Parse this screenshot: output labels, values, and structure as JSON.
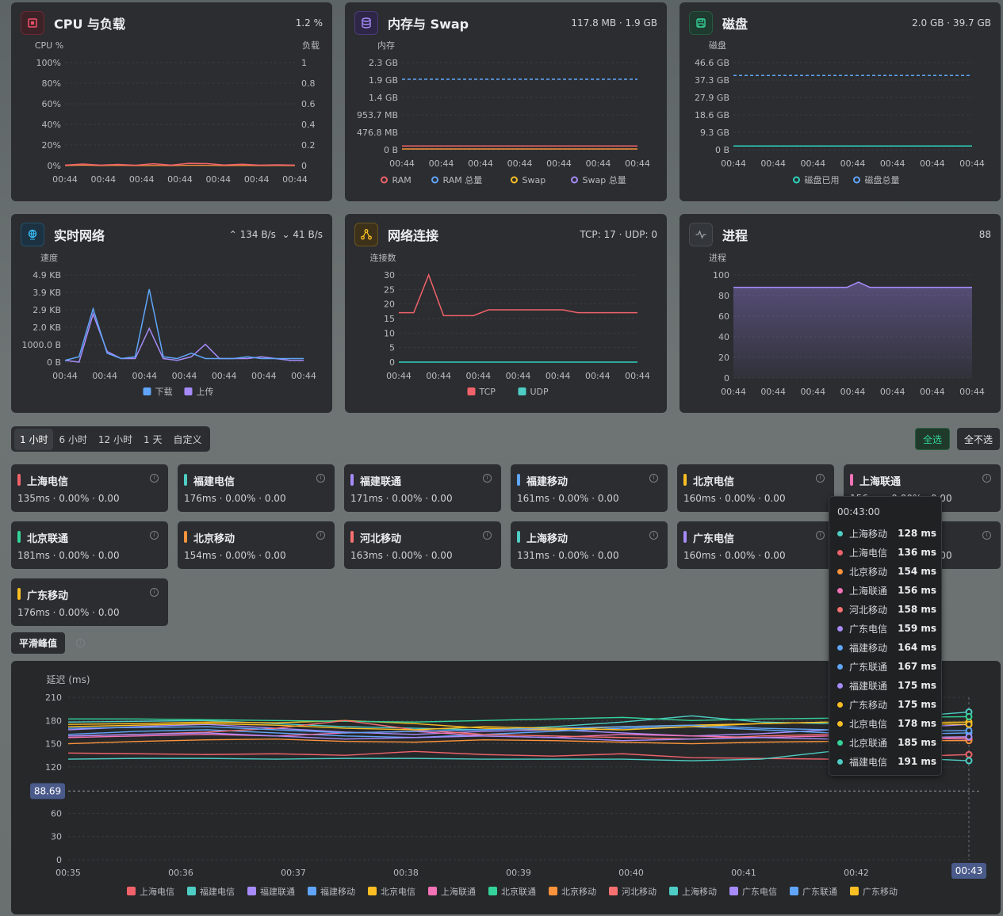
{
  "cards": {
    "cpu": {
      "title": "CPU 与负载",
      "value": "1.2 %",
      "ylabel": "CPU %",
      "y2label": "负载",
      "yticks": [
        "100%",
        "80%",
        "60%",
        "40%",
        "20%",
        "0%"
      ],
      "y2ticks": [
        "1",
        "0.8",
        "0.6",
        "0.4",
        "0.2",
        "0"
      ],
      "xticks": [
        "00:44",
        "00:44",
        "00:44",
        "00:44",
        "00:44",
        "00:44",
        "00:44"
      ]
    },
    "mem": {
      "title": "内存与 Swap",
      "value": "117.8 MB · 1.9 GB",
      "ylabel": "内存",
      "yticks": [
        "2.3 GB",
        "1.9 GB",
        "1.4 GB",
        "953.7 MB",
        "476.8 MB",
        "0 B"
      ],
      "xticks": [
        "00:44",
        "00:44",
        "00:44",
        "00:44",
        "00:44",
        "00:44",
        "00:44"
      ],
      "legend": [
        "RAM",
        "RAM 总量",
        "Swap",
        "Swap 总量"
      ]
    },
    "disk": {
      "title": "磁盘",
      "value": "2.0 GB · 39.7 GB",
      "ylabel": "磁盘",
      "yticks": [
        "46.6 GB",
        "37.3 GB",
        "27.9 GB",
        "18.6 GB",
        "9.3 GB",
        "0 B"
      ],
      "xticks": [
        "00:44",
        "00:44",
        "00:44",
        "00:44",
        "00:44",
        "00:44",
        "00:44"
      ],
      "legend": [
        "磁盘已用",
        "磁盘总量"
      ]
    },
    "net": {
      "title": "实时网络",
      "up": "134 B/s",
      "down": "41 B/s",
      "ylabel": "速度",
      "yticks": [
        "4.9 KB",
        "3.9 KB",
        "2.9 KB",
        "2.0 KB",
        "1000.0 B",
        "0 B"
      ],
      "xticks": [
        "00:44",
        "00:44",
        "00:44",
        "00:44",
        "00:44",
        "00:44",
        "00:44"
      ],
      "legend": [
        "下载",
        "上传"
      ]
    },
    "conn": {
      "title": "网络连接",
      "value": "TCP: 17 · UDP: 0",
      "ylabel": "连接数",
      "yticks": [
        "30",
        "25",
        "20",
        "15",
        "10",
        "5",
        "0"
      ],
      "xticks": [
        "00:44",
        "00:44",
        "00:44",
        "00:44",
        "00:44",
        "00:44",
        "00:44"
      ],
      "legend": [
        "TCP",
        "UDP"
      ]
    },
    "proc": {
      "title": "进程",
      "value": "88",
      "ylabel": "进程",
      "yticks": [
        "100",
        "80",
        "60",
        "40",
        "20",
        "0"
      ],
      "xticks": [
        "00:44",
        "00:44",
        "00:44",
        "00:44",
        "00:44",
        "00:44",
        "00:44"
      ]
    }
  },
  "range_tabs": [
    "1 小时",
    "6 小时",
    "12 小时",
    "1 天",
    "自定义"
  ],
  "select_all": "全选",
  "select_none": "全不选",
  "nodes": [
    {
      "name": "上海电信",
      "stat": "135ms · 0.00% · 0.00",
      "color": "#f0626a"
    },
    {
      "name": "福建电信",
      "stat": "176ms · 0.00% · 0.00",
      "color": "#4ecdc4"
    },
    {
      "name": "福建联通",
      "stat": "171ms · 0.00% · 0.00",
      "color": "#a78bfa"
    },
    {
      "name": "福建移动",
      "stat": "161ms · 0.00% · 0.00",
      "color": "#60a5fa"
    },
    {
      "name": "北京电信",
      "stat": "160ms · 0.00% · 0.00",
      "color": "#fbbf24"
    },
    {
      "name": "上海联通",
      "stat": "156ms · 0.00% · 0.00",
      "color": "#f472b6"
    },
    {
      "name": "北京联通",
      "stat": "181ms · 0.00% · 0.00",
      "color": "#34d399"
    },
    {
      "name": "北京移动",
      "stat": "154ms · 0.00% · 0.00",
      "color": "#fb923c"
    },
    {
      "name": "河北移动",
      "stat": "163ms · 0.00% · 0.00",
      "color": "#f87171"
    },
    {
      "name": "上海移动",
      "stat": "131ms · 0.00% · 0.00",
      "color": "#4ecdc4"
    },
    {
      "name": "广东电信",
      "stat": "160ms · 0.00% · 0.00",
      "color": "#a78bfa"
    },
    {
      "name": "广东联通",
      "stat": "167ms · 0.00% · 0.00",
      "color": "#60a5fa"
    },
    {
      "name": "广东移动",
      "stat": "176ms · 0.00% · 0.00",
      "color": "#fbbf24"
    }
  ],
  "smooth_label": "平滑峰值",
  "tooltip": {
    "time": "00:43:00",
    "rows": [
      {
        "name": "上海移动",
        "value": "128 ms",
        "color": "#4ecdc4"
      },
      {
        "name": "上海电信",
        "value": "136 ms",
        "color": "#f0626a"
      },
      {
        "name": "北京移动",
        "value": "154 ms",
        "color": "#fb923c"
      },
      {
        "name": "上海联通",
        "value": "156 ms",
        "color": "#f472b6"
      },
      {
        "name": "河北移动",
        "value": "158 ms",
        "color": "#f87171"
      },
      {
        "name": "广东电信",
        "value": "159 ms",
        "color": "#a78bfa"
      },
      {
        "name": "福建移动",
        "value": "164 ms",
        "color": "#60a5fa"
      },
      {
        "name": "广东联通",
        "value": "167 ms",
        "color": "#60a5fa"
      },
      {
        "name": "福建联通",
        "value": "175 ms",
        "color": "#a78bfa"
      },
      {
        "name": "广东移动",
        "value": "175 ms",
        "color": "#fbbf24"
      },
      {
        "name": "北京电信",
        "value": "178 ms",
        "color": "#fbbf24"
      },
      {
        "name": "北京联通",
        "value": "185 ms",
        "color": "#34d399"
      },
      {
        "name": "福建电信",
        "value": "191 ms",
        "color": "#4ecdc4"
      }
    ]
  },
  "chart_data": {
    "type": "line",
    "ylabel": "延迟 (ms)",
    "ylim": [
      0,
      210
    ],
    "yticks": [
      "210",
      "180",
      "150",
      "120",
      "90",
      "60",
      "30",
      "0"
    ],
    "xticks": [
      "00:35",
      "00:36",
      "00:37",
      "00:38",
      "00:39",
      "00:40",
      "00:41",
      "00:42"
    ],
    "x_hover": "00:43",
    "threshold": 88.69,
    "threshold_label": "88.69",
    "series": [
      {
        "name": "上海电信",
        "color": "#f0626a",
        "values": [
          138,
          137,
          136,
          137,
          135,
          140,
          136,
          134,
          137,
          132,
          131,
          130,
          133,
          136
        ]
      },
      {
        "name": "福建电信",
        "color": "#4ecdc4",
        "values": [
          178,
          179,
          180,
          176,
          172,
          170,
          168,
          172,
          178,
          186,
          178,
          176,
          184,
          191
        ]
      },
      {
        "name": "福建联通",
        "color": "#a78bfa",
        "values": [
          168,
          172,
          175,
          170,
          165,
          162,
          166,
          168,
          164,
          160,
          163,
          168,
          170,
          175
        ]
      },
      {
        "name": "福建移动",
        "color": "#60a5fa",
        "values": [
          162,
          166,
          168,
          164,
          160,
          158,
          162,
          166,
          170,
          172,
          168,
          164,
          162,
          164
        ]
      },
      {
        "name": "北京电信",
        "color": "#fbbf24",
        "values": [
          175,
          176,
          178,
          177,
          180,
          176,
          170,
          168,
          172,
          174,
          176,
          178,
          177,
          178
        ]
      },
      {
        "name": "上海联通",
        "color": "#f472b6",
        "values": [
          158,
          160,
          162,
          160,
          164,
          166,
          160,
          158,
          162,
          160,
          158,
          160,
          157,
          156
        ]
      },
      {
        "name": "北京联通",
        "color": "#34d399",
        "values": [
          182,
          182,
          181,
          180,
          179,
          178,
          180,
          182,
          184,
          180,
          182,
          183,
          184,
          185
        ]
      },
      {
        "name": "北京移动",
        "color": "#fb923c",
        "values": [
          150,
          153,
          155,
          156,
          153,
          152,
          155,
          154,
          152,
          150,
          152,
          153,
          154,
          154
        ]
      },
      {
        "name": "河北移动",
        "color": "#f87171",
        "values": [
          160,
          162,
          165,
          170,
          180,
          168,
          162,
          160,
          158,
          156,
          160,
          162,
          158,
          158
        ]
      },
      {
        "name": "上海移动",
        "color": "#4ecdc4",
        "values": [
          130,
          131,
          131,
          130,
          131,
          131,
          130,
          130,
          130,
          128,
          130,
          140,
          132,
          128
        ]
      },
      {
        "name": "广东电信",
        "color": "#a78bfa",
        "values": [
          160,
          162,
          164,
          160,
          156,
          158,
          160,
          158,
          154,
          156,
          158,
          156,
          158,
          159
        ]
      },
      {
        "name": "广东联通",
        "color": "#60a5fa",
        "values": [
          170,
          171,
          172,
          168,
          164,
          166,
          168,
          170,
          172,
          174,
          170,
          168,
          166,
          167
        ]
      },
      {
        "name": "广东移动",
        "color": "#fbbf24",
        "values": [
          172,
          174,
          176,
          174,
          170,
          168,
          172,
          170,
          168,
          172,
          176,
          178,
          176,
          175
        ]
      }
    ]
  }
}
